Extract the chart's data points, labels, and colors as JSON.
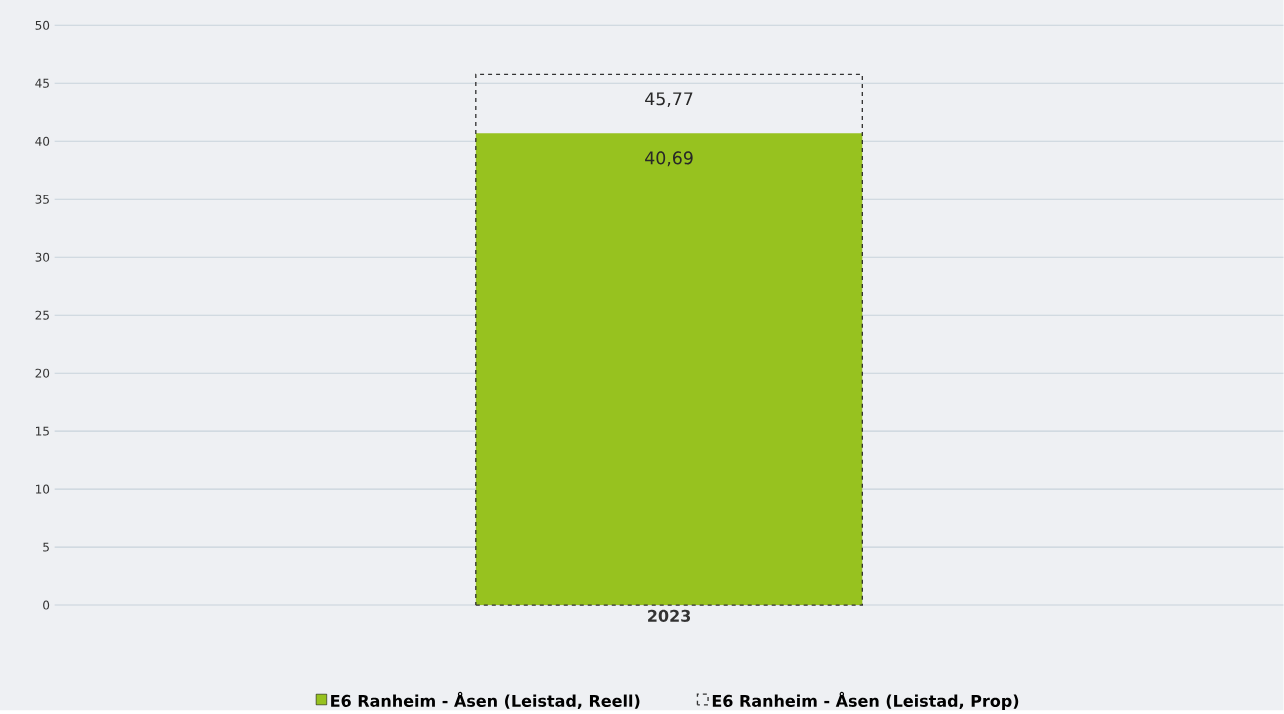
{
  "chart_data": {
    "type": "bar",
    "categories": [
      "2023"
    ],
    "series": [
      {
        "name": "E6 Ranheim - Åsen (Leistad, Reell)",
        "color": "#97c21f",
        "values": [
          40.69
        ],
        "value_labels": [
          "40,69"
        ]
      },
      {
        "name": "E6 Ranheim - Åsen (Leistad, Prop)",
        "color": "#333333",
        "line_style": "dashed",
        "values": [
          45.77
        ],
        "value_labels": [
          "45,77"
        ]
      }
    ],
    "ylim": [
      0,
      50
    ],
    "yticks": [
      0,
      5,
      10,
      15,
      20,
      25,
      30,
      35,
      40,
      45,
      50
    ],
    "grid": "y",
    "legend": "bottom"
  }
}
